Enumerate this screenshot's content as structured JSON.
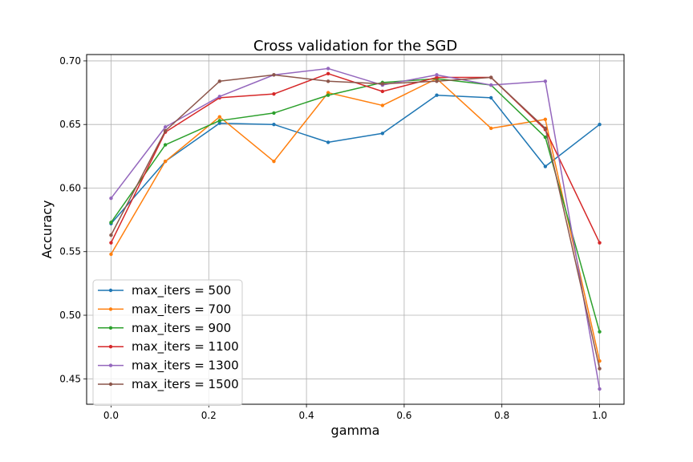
{
  "chart_data": {
    "type": "line",
    "title": "Cross validation for the SGD",
    "xlabel": "gamma",
    "ylabel": "Accuracy",
    "xlim": [
      -0.05,
      1.05
    ],
    "ylim": [
      0.43,
      0.705
    ],
    "grid": true,
    "legend_position": "lower-left",
    "x": [
      0.0,
      0.1111,
      0.2222,
      0.3333,
      0.4444,
      0.5556,
      0.6667,
      0.7778,
      0.8889,
      1.0
    ],
    "x_ticks": [
      0.0,
      0.2,
      0.4,
      0.6,
      0.8,
      1.0
    ],
    "x_tick_labels": [
      "0.0",
      "0.2",
      "0.4",
      "0.6",
      "0.8",
      "1.0"
    ],
    "y_ticks": [
      0.45,
      0.5,
      0.55,
      0.6,
      0.65,
      0.7
    ],
    "y_tick_labels": [
      "0.45",
      "0.50",
      "0.55",
      "0.60",
      "0.65",
      "0.70"
    ],
    "series": [
      {
        "name": "max_iters = 500",
        "color": "#1f77b4",
        "values": [
          0.572,
          0.621,
          0.651,
          0.65,
          0.636,
          0.643,
          0.673,
          0.671,
          0.617,
          0.65
        ]
      },
      {
        "name": "max_iters = 700",
        "color": "#ff7f0e",
        "values": [
          0.548,
          0.621,
          0.656,
          0.621,
          0.675,
          0.665,
          0.686,
          0.647,
          0.654,
          0.464
        ]
      },
      {
        "name": "max_iters = 900",
        "color": "#2ca02c",
        "values": [
          0.573,
          0.634,
          0.653,
          0.659,
          0.673,
          0.683,
          0.686,
          0.681,
          0.64,
          0.487
        ]
      },
      {
        "name": "max_iters = 1100",
        "color": "#d62728",
        "values": [
          0.557,
          0.644,
          0.671,
          0.674,
          0.69,
          0.676,
          0.687,
          0.687,
          0.646,
          0.557
        ]
      },
      {
        "name": "max_iters = 1300",
        "color": "#9467bd",
        "values": [
          0.592,
          0.648,
          0.672,
          0.689,
          0.694,
          0.681,
          0.689,
          0.681,
          0.684,
          0.442
        ]
      },
      {
        "name": "max_iters = 1500",
        "color": "#8c564b",
        "values": [
          0.563,
          0.645,
          0.684,
          0.689,
          0.684,
          0.682,
          0.684,
          0.687,
          0.647,
          0.458
        ]
      }
    ]
  }
}
